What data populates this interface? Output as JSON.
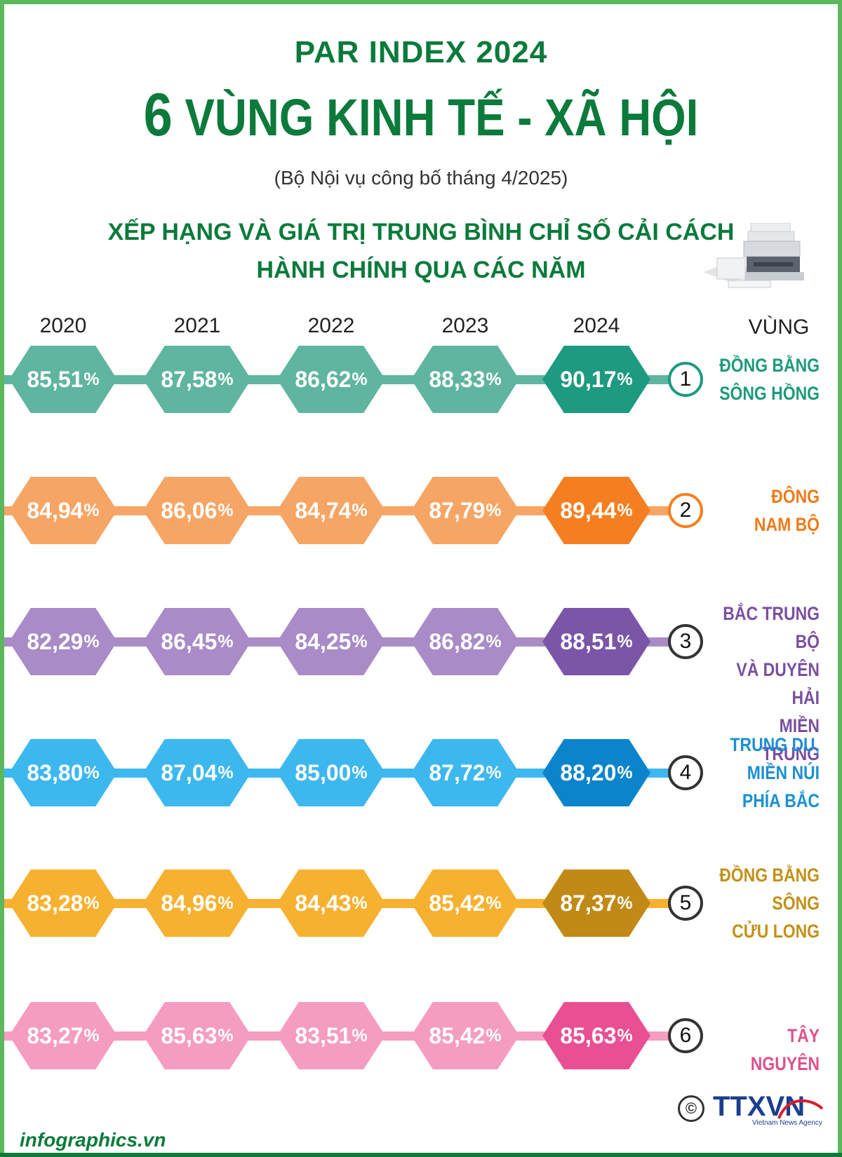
{
  "header": {
    "title_small": "PAR INDEX 2024",
    "title_number": "6",
    "title_rest": "VÙNG KINH TẾ - XÃ HỘI",
    "subtitle": "(Bộ Nội vụ công bố tháng 4/2025)",
    "heading_line1": "XẾP HẠNG VÀ GIÁ TRỊ TRUNG BÌNH CHỈ SỐ CẢI CÁCH",
    "heading_line2": "HÀNH CHÍNH QUA CÁC NĂM"
  },
  "columns": {
    "region_label": "VÙNG"
  },
  "chart_data": {
    "type": "table",
    "title": "XẾP HẠNG VÀ GIÁ TRỊ TRUNG BÌNH CHỈ SỐ CẢI CÁCH HÀNH CHÍNH QUA CÁC NĂM",
    "unit": "%",
    "years": [
      "2020",
      "2021",
      "2022",
      "2023",
      "2024"
    ],
    "rows": [
      {
        "rank": "1",
        "region_lines": [
          "ĐỒNG BẰNG",
          "SÔNG HỒNG"
        ],
        "values": [
          "85,51",
          "87,58",
          "86,62",
          "88,33",
          "90,17"
        ],
        "color": "#5fb5a0",
        "color_dark": "#1e9a80",
        "text_color": "#1d9a7c"
      },
      {
        "rank": "2",
        "region_lines": [
          "ĐÔNG",
          "NAM BỘ"
        ],
        "values": [
          "84,94",
          "86,06",
          "84,74",
          "87,79",
          "89,44"
        ],
        "color": "#f6a565",
        "color_dark": "#f57f20",
        "text_color": "#ef7a1a"
      },
      {
        "rank": "3",
        "region_lines": [
          "BẮC TRUNG BỘ",
          "VÀ DUYÊN HẢI",
          "MIỀN TRUNG"
        ],
        "values": [
          "82,29",
          "86,45",
          "84,25",
          "86,82",
          "88,51"
        ],
        "color": "#a98bc7",
        "color_dark": "#7a55a8",
        "text_color": "#7a4f9f"
      },
      {
        "rank": "4",
        "region_lines": [
          "TRUNG DU,",
          "MIỀN NÚI",
          "PHÍA BẮC"
        ],
        "values": [
          "83,80",
          "87,04",
          "85,00",
          "87,72",
          "88,20"
        ],
        "color": "#3db8ee",
        "color_dark": "#0c84cc",
        "text_color": "#1b8fd4"
      },
      {
        "rank": "5",
        "region_lines": [
          "ĐỒNG BẰNG",
          "SÔNG",
          "CỬU LONG"
        ],
        "values": [
          "83,28",
          "84,96",
          "84,43",
          "85,42",
          "87,37"
        ],
        "color": "#f7b130",
        "color_dark": "#c18a16",
        "text_color": "#c39017"
      },
      {
        "rank": "6",
        "region_lines": [
          "TÂY NGUYÊN"
        ],
        "values": [
          "83,27",
          "85,63",
          "83,51",
          "85,42",
          "85,63"
        ],
        "color": "#f59cc1",
        "color_dark": "#e94f93",
        "text_color": "#e0508e"
      }
    ]
  },
  "footer": {
    "site": "infographics.vn",
    "copyright_symbol": "©",
    "agency_logo": "TTXVN",
    "agency_sub": "Vietnam News Agency"
  }
}
